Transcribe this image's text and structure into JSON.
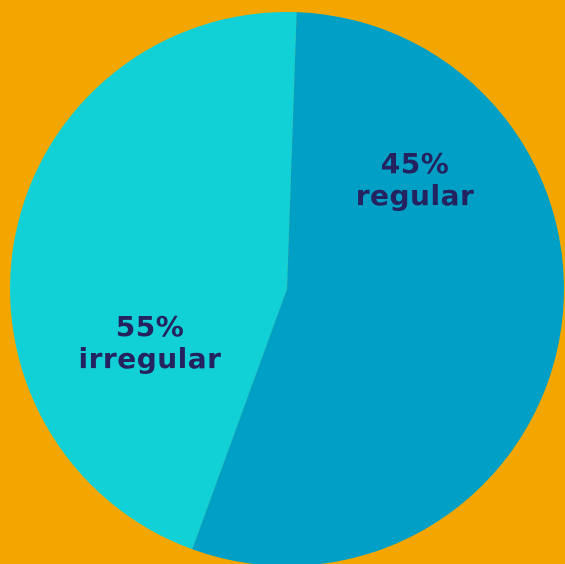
{
  "chart_data": {
    "type": "pie",
    "title": "",
    "slices": [
      {
        "label": "regular",
        "value": 45,
        "value_text": "45%",
        "color": "#12D1D6"
      },
      {
        "label": "irregular",
        "value": 55,
        "value_text": "55%",
        "color": "#00A0C6"
      }
    ],
    "background_color": "#F4A600",
    "label_color": "#24225F",
    "legend": "none"
  }
}
